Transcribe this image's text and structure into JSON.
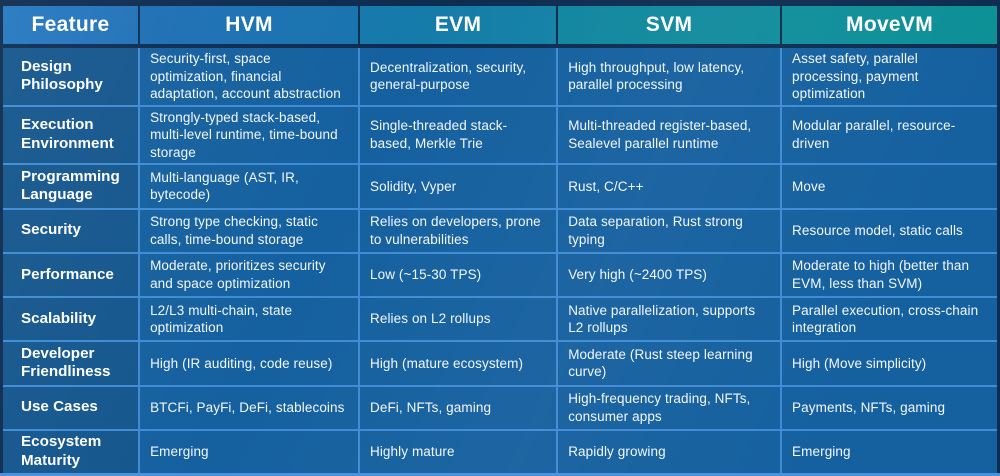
{
  "title": "Virtual machine feature comparison table",
  "colors": {
    "frame": "#0d2c50",
    "header_gradient_start": "#2478c1",
    "header_gradient_end": "#0d9097",
    "label_cell": "#14568d",
    "data_cell": "#15609f",
    "cell_border": "#3f8bd4",
    "bottom_edge": "#4a93dc",
    "text": "#ffffff"
  },
  "chart_data": {
    "type": "table",
    "columns": [
      "Feature",
      "HVM",
      "EVM",
      "SVM",
      "MoveVM"
    ],
    "rows": [
      [
        "Design Philosophy",
        "Security-first, space optimization, financial adaptation, account abstraction",
        "Decentralization, security, general-purpose",
        "High throughput, low latency, parallel processing",
        "Asset safety, parallel processing, payment optimization"
      ],
      [
        "Execution Environment",
        "Strongly-typed stack-based, multi-level runtime, time-bound storage",
        "Single-threaded stack-based, Merkle Trie",
        "Multi-threaded register-based, Sealevel parallel runtime",
        "Modular parallel, resource-driven"
      ],
      [
        "Programming Language",
        "Multi-language (AST, IR, bytecode)",
        "Solidity, Vyper",
        "Rust, C/C++",
        "Move"
      ],
      [
        "Security",
        "Strong type checking, static calls, time-bound storage",
        "Relies on developers, prone to vulnerabilities",
        "Data separation, Rust strong typing",
        "Resource model, static calls"
      ],
      [
        "Performance",
        "Moderate, prioritizes security and space optimization",
        "Low (~15-30 TPS)",
        "Very high (~2400 TPS)",
        "Moderate to high (better than EVM, less than SVM)"
      ],
      [
        "Scalability",
        "L2/L3 multi-chain, state optimization",
        "Relies on L2 rollups",
        "Native parallelization, supports L2 rollups",
        "Parallel execution, cross-chain integration"
      ],
      [
        "Developer Friendliness",
        "High (IR auditing, code reuse)",
        "High (mature ecosystem)",
        "Moderate (Rust steep learning curve)",
        "High (Move simplicity)"
      ],
      [
        "Use Cases",
        "BTCFi, PayFi, DeFi, stablecoins",
        "DeFi, NFTs, gaming",
        "High-frequency trading, NFTs, consumer apps",
        "Payments, NFTs, gaming"
      ],
      [
        "Ecosystem Maturity",
        "Emerging",
        "Highly mature",
        "Rapidly growing",
        "Emerging"
      ]
    ]
  }
}
